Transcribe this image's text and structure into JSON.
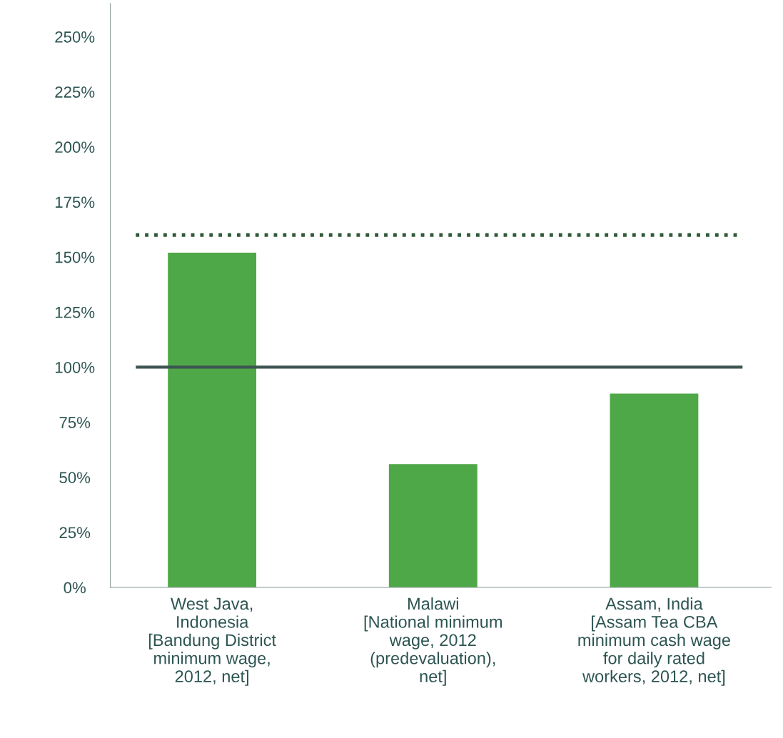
{
  "chart_data": {
    "type": "bar",
    "categories": [
      "West Java,\nIndonesia\n[Bandung District\nminimum wage,\n2012, net]",
      "Malawi\n[National minimum\nwage, 2012\n(predevaluation),\nnet]",
      "Assam, India\n[Assam Tea CBA\nminimum cash wage\nfor daily rated\nworkers, 2012, net]"
    ],
    "values": [
      152,
      56,
      88
    ],
    "color": "#4fa847",
    "ylim": [
      0,
      265
    ],
    "yticks": [
      {
        "value": 0,
        "label": "0%"
      },
      {
        "value": 25,
        "label": "25%"
      },
      {
        "value": 50,
        "label": "50%"
      },
      {
        "value": 75,
        "label": "75%"
      },
      {
        "value": 100,
        "label": "100%"
      },
      {
        "value": 125,
        "label": "125%"
      },
      {
        "value": 150,
        "label": "150%"
      },
      {
        "value": 175,
        "label": "175%"
      },
      {
        "value": 200,
        "label": "200%"
      },
      {
        "value": 225,
        "label": "225%"
      },
      {
        "value": 250,
        "label": "250%"
      }
    ],
    "ref_lines": [
      {
        "axis": "y",
        "value": 100,
        "label": null,
        "color": "#3d5552",
        "line_style": "solid"
      },
      {
        "axis": "y",
        "value": 160,
        "label": null,
        "color": "#2f5a3a",
        "line_style": "dotted"
      }
    ],
    "grid": false,
    "legend": false
  }
}
